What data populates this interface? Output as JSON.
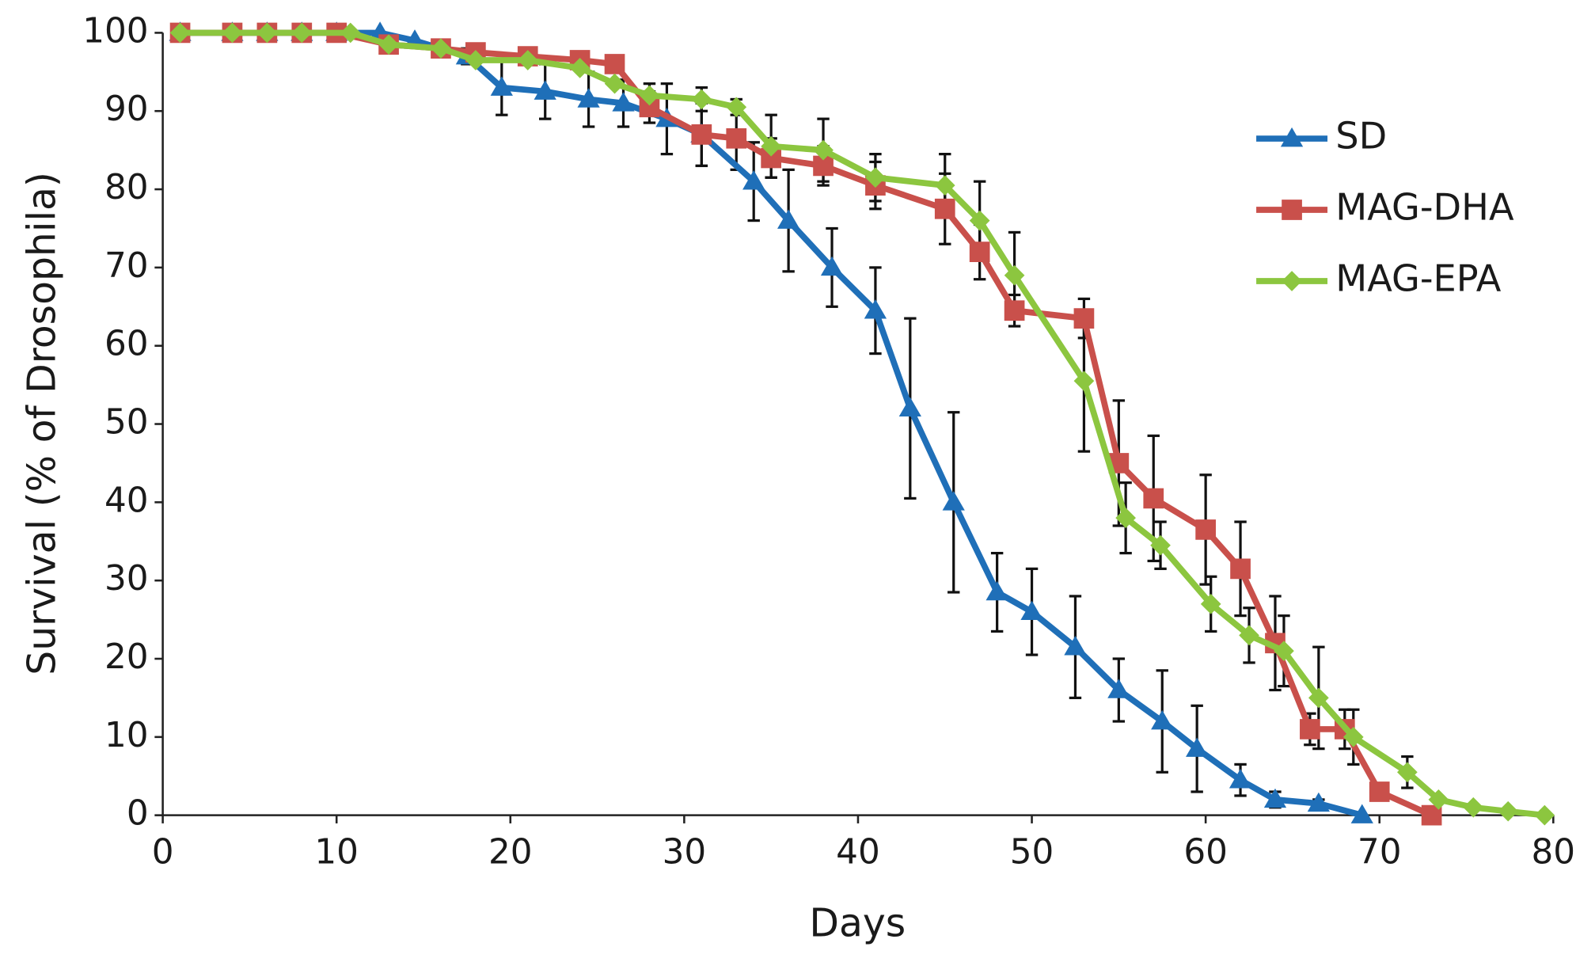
{
  "chart_data": {
    "type": "line",
    "xlabel": "Days",
    "ylabel": "Survival (% of Drosophila)",
    "xlim": [
      0,
      80
    ],
    "xticks": [
      0,
      10,
      20,
      30,
      40,
      50,
      60,
      70,
      80
    ],
    "ylim": [
      0,
      100
    ],
    "yticks": [
      0,
      10,
      20,
      30,
      40,
      50,
      60,
      70,
      80,
      90,
      100
    ],
    "grid": false,
    "legend": "upper right",
    "series": [
      {
        "name": "SD",
        "color": "#1f6fb8",
        "marker": "triangle",
        "x": [
          1,
          4,
          6,
          8,
          10,
          12.5,
          14.5,
          17.5,
          19.5,
          22,
          24.5,
          26.5,
          29,
          31,
          34,
          36,
          38.5,
          41,
          43,
          45.5,
          48,
          50,
          52.5,
          55,
          57.5,
          59.5,
          62,
          64,
          66.5,
          69
        ],
        "values": [
          100,
          100,
          100,
          100,
          100,
          100,
          99,
          97,
          93,
          92.5,
          91.5,
          91,
          89,
          87,
          81,
          76,
          70,
          64.5,
          52,
          40,
          28.5,
          26,
          21.5,
          16,
          12,
          8.5,
          4.5,
          2,
          1.5,
          0
        ],
        "errors": [
          0,
          0,
          0,
          0,
          0,
          0,
          0,
          1,
          3.5,
          3.5,
          3.5,
          3,
          4.5,
          4,
          5,
          6.5,
          5,
          5.5,
          11.5,
          11.5,
          5,
          5.5,
          6.5,
          4,
          6.5,
          5.5,
          2,
          1,
          0.5,
          0
        ]
      },
      {
        "name": "MAG-DHA",
        "color": "#c9504b",
        "marker": "square",
        "x": [
          1,
          4,
          6,
          8,
          10,
          13,
          16,
          18,
          21,
          24,
          26,
          28,
          31,
          33,
          35,
          38,
          41,
          45,
          47,
          49,
          53,
          55,
          57,
          60,
          62,
          64,
          66,
          68,
          70,
          73
        ],
        "values": [
          100,
          100,
          100,
          100,
          100,
          98.5,
          98,
          97.5,
          97,
          96.5,
          96,
          90.5,
          87,
          86.5,
          84,
          83,
          80.5,
          77.5,
          72,
          64.5,
          63.5,
          45,
          40.5,
          36.5,
          31.5,
          22,
          11,
          11,
          3,
          0
        ],
        "errors": [
          0,
          0,
          0,
          0,
          0,
          0,
          0,
          0,
          0,
          0,
          0,
          2,
          4,
          4,
          2.5,
          2.5,
          3,
          4.5,
          3.5,
          2,
          2.5,
          8,
          8,
          7,
          6,
          6,
          2,
          2.5,
          1,
          0
        ]
      },
      {
        "name": "MAG-EPA",
        "color": "#8cc63f",
        "marker": "diamond",
        "x": [
          1,
          4,
          6,
          8,
          10.8,
          13,
          16,
          18,
          21,
          24,
          26,
          28,
          31,
          33,
          35,
          38,
          41,
          45,
          47,
          49,
          53,
          55.4,
          57.4,
          60.3,
          62.5,
          64.5,
          66.5,
          68.5,
          71.6,
          73.4,
          75.4,
          77.4,
          79.5
        ],
        "values": [
          100,
          100,
          100,
          100,
          100,
          98.5,
          98,
          96.5,
          96.5,
          95.5,
          93.5,
          92,
          91.5,
          90.5,
          85.5,
          85,
          81.5,
          80.5,
          76,
          69,
          55.5,
          38,
          34.5,
          27,
          23,
          21,
          15,
          10,
          5.5,
          2,
          1,
          0.5,
          0
        ],
        "errors": [
          0,
          0,
          0,
          0,
          0,
          0,
          0,
          0,
          0,
          0,
          0,
          1.5,
          1.5,
          1,
          4,
          4,
          3,
          4,
          5,
          5.5,
          9,
          4.5,
          3,
          3.5,
          3.5,
          4.5,
          6.5,
          3.5,
          2,
          0,
          0,
          0,
          0
        ]
      }
    ]
  }
}
